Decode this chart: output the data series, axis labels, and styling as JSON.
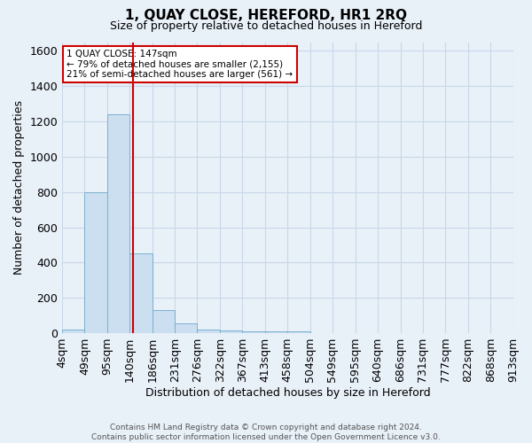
{
  "title": "1, QUAY CLOSE, HEREFORD, HR1 2RQ",
  "subtitle": "Size of property relative to detached houses in Hereford",
  "xlabel": "Distribution of detached houses by size in Hereford",
  "ylabel": "Number of detached properties",
  "footnote1": "Contains HM Land Registry data © Crown copyright and database right 2024.",
  "footnote2": "Contains public sector information licensed under the Open Government Licence v3.0.",
  "annotation_line1": "1 QUAY CLOSE: 147sqm",
  "annotation_line2": "← 79% of detached houses are smaller (2,155)",
  "annotation_line3": "21% of semi-detached houses are larger (561) →",
  "property_size": 147,
  "bin_edges": [
    4,
    49,
    95,
    140,
    186,
    231,
    276,
    322,
    367,
    413,
    458,
    504,
    549,
    595,
    640,
    686,
    731,
    777,
    822,
    868,
    913
  ],
  "bin_labels": [
    "4sqm",
    "49sqm",
    "95sqm",
    "140sqm",
    "186sqm",
    "231sqm",
    "276sqm",
    "322sqm",
    "367sqm",
    "413sqm",
    "458sqm",
    "504sqm",
    "549sqm",
    "595sqm",
    "640sqm",
    "686sqm",
    "731sqm",
    "777sqm",
    "822sqm",
    "868sqm",
    "913sqm"
  ],
  "bar_heights": [
    20,
    800,
    1240,
    450,
    130,
    55,
    20,
    15,
    10,
    8,
    8,
    0,
    0,
    0,
    0,
    0,
    0,
    0,
    0,
    0
  ],
  "bar_color": "#ccdff0",
  "bar_edge_color": "#7ab0d0",
  "vline_color": "#cc0000",
  "vline_x": 147,
  "ylim": [
    0,
    1650
  ],
  "yticks": [
    0,
    200,
    400,
    600,
    800,
    1000,
    1200,
    1400,
    1600
  ],
  "annotation_box_color": "#ffffff",
  "annotation_box_edge": "#cc0000",
  "grid_color": "#c8d8e8",
  "background_color": "#e8f0f8"
}
